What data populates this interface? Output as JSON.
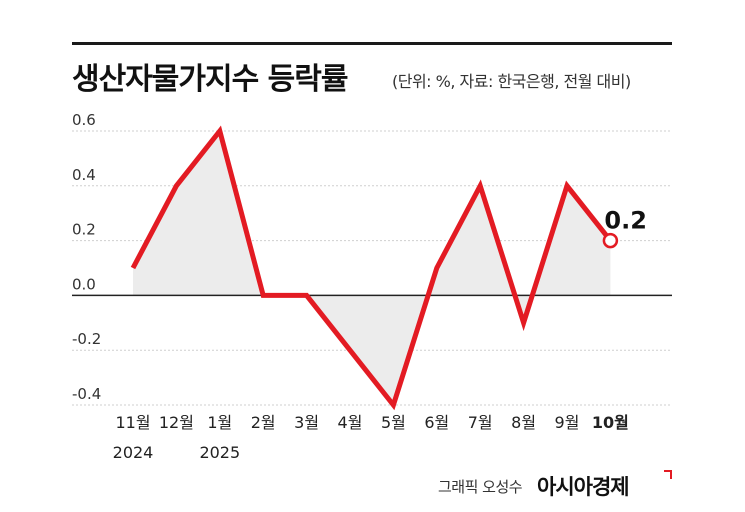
{
  "title": "생산자물가지수 등락률",
  "subtitle": "(단위: %, 자료: 한국은행, 전월 대비)",
  "credit": {
    "label": "그래픽 오성수",
    "brand": "아시아경제",
    "brand_mark_icon": "red-corner-mark-icon"
  },
  "colors": {
    "line": "#e31b23",
    "fill": "#ececec",
    "grid": "#cfcfcf",
    "zero_line": "#222222",
    "top_rule": "#1a1a1a"
  },
  "chart_data": {
    "type": "line",
    "title": "생산자물가지수 등락률",
    "categories": [
      "11월",
      "12월",
      "1월",
      "2월",
      "3월",
      "4월",
      "5월",
      "6월",
      "7월",
      "8월",
      "9월",
      "10월"
    ],
    "category_years": [
      "2024",
      "",
      "2025",
      "",
      "",
      "",
      "",
      "",
      "",
      "",
      "",
      ""
    ],
    "series": [
      {
        "values": [
          0.1,
          0.4,
          0.6,
          0.0,
          0.0,
          -0.2,
          -0.4,
          0.1,
          0.4,
          -0.1,
          0.4,
          0.2
        ]
      }
    ],
    "yticks": [
      "0.6",
      "0.4",
      "0.2",
      "0.0",
      "-0.2",
      "-0.4"
    ],
    "ylim": [
      -0.4,
      0.6
    ],
    "grid": true,
    "area_fill_to_zero": true,
    "highlight": {
      "index": 11,
      "label": "0.2"
    }
  }
}
